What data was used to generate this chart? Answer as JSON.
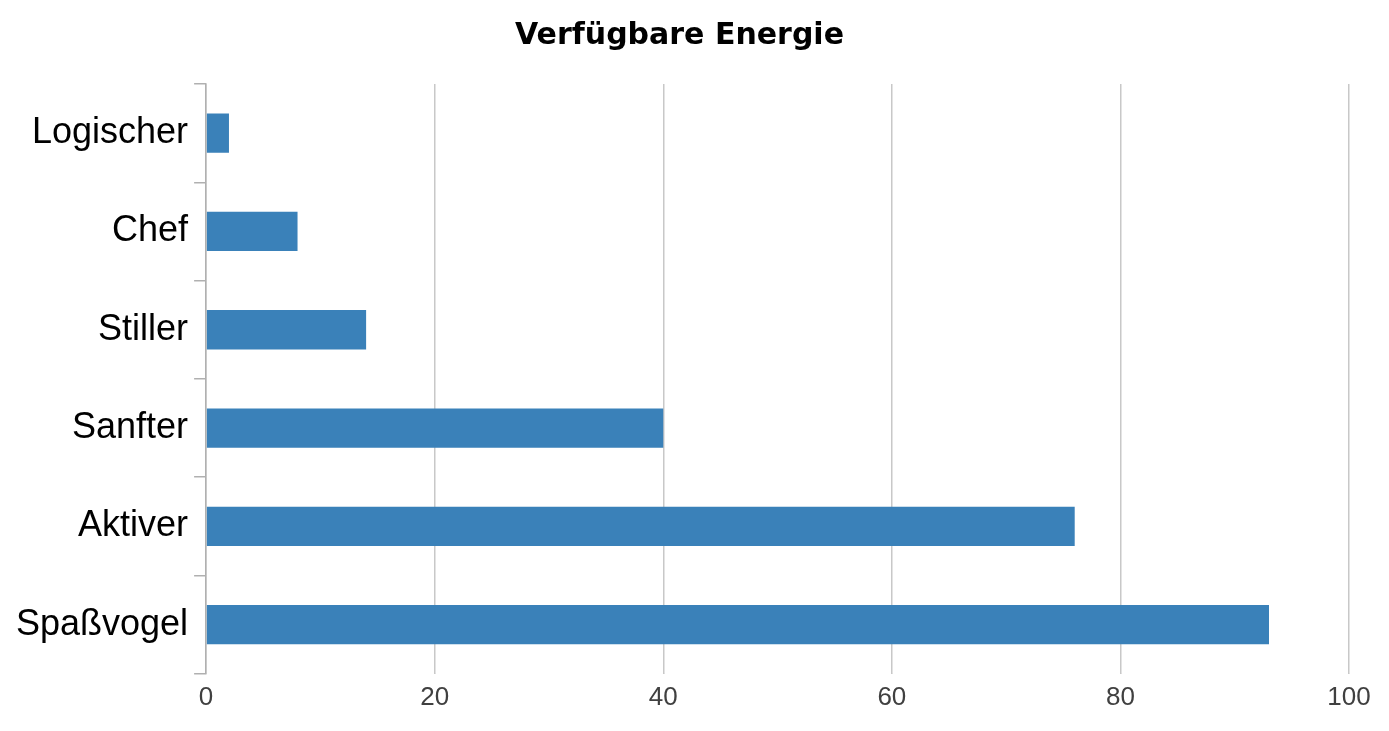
{
  "chart_data": {
    "type": "bar",
    "orientation": "horizontal",
    "title": "Verfügbare Energie",
    "categories": [
      "Logischer",
      "Chef",
      "Stiller",
      "Sanfter",
      "Aktiver",
      "Spaßvogel"
    ],
    "values": [
      2,
      8,
      14,
      40,
      76,
      93
    ],
    "color": "#3a81b9",
    "xlim": [
      0,
      100
    ],
    "xticks": [
      0,
      20,
      40,
      60,
      80,
      100
    ],
    "grid": "x",
    "legend": false
  }
}
